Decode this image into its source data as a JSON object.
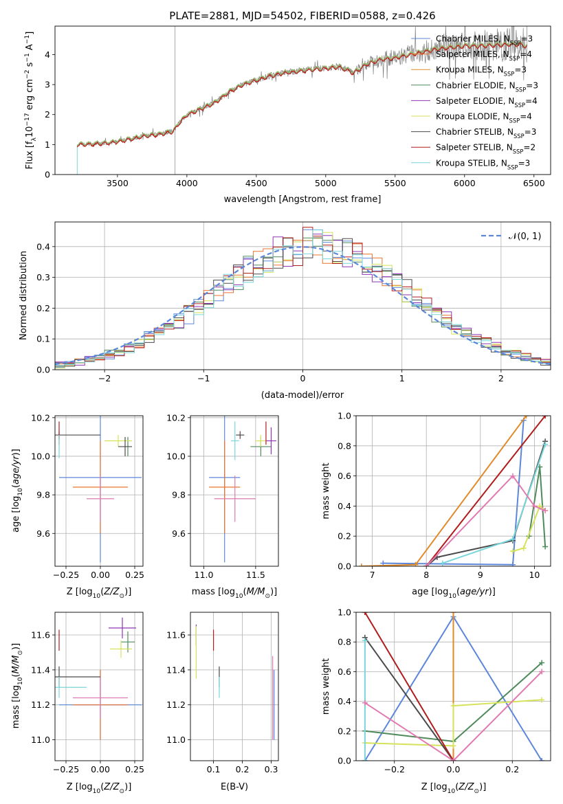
{
  "figure": {
    "title": "PLATE=2881, MJD=54502, FIBERID=0588, z=0.426"
  },
  "colors": {
    "chabrier_miles": "#5b86d9",
    "salpeter_miles": "#e8752e",
    "kroupa_miles": "#e08a2a",
    "chabrier_elodie": "#4f8a5b",
    "salpeter_elodie": "#8e35b5",
    "kroupa_elodie": "#d6e25a",
    "chabrier_stelib": "#4a4a4a",
    "salpeter_stelib": "#b01c1c",
    "kroupa_stelib": "#79d6da",
    "pink": "#e07ab0",
    "spectrum": "#808080",
    "grid": "#b0b0b0"
  },
  "chart_data": [
    {
      "id": "spectrum",
      "type": "line",
      "title": "PLATE=2881, MJD=54502, FIBERID=0588, z=0.426",
      "xlabel": "wavelength [Angstrom, rest frame]",
      "ylabel": "Flux [f_λ 10^-17 erg cm^-2 s^-1 A^-1]",
      "xlim": [
        3050,
        6620
      ],
      "ylim": [
        0,
        4.95
      ],
      "xticks": [
        3500,
        4000,
        4500,
        5000,
        5500,
        6000,
        6500
      ],
      "yticks": [
        0,
        1,
        2,
        3,
        4
      ],
      "grid": false,
      "legend_position": "top-right",
      "legend": [
        {
          "name": "Chabrier MILES, N_SSP=3",
          "color": "#5b86d9"
        },
        {
          "name": "Salpeter MILES, N_SSP=4",
          "color": "#e8752e"
        },
        {
          "name": "Kroupa MILES, N_SSP=3",
          "color": "#e08a2a"
        },
        {
          "name": "Chabrier ELODIE, N_SSP=3",
          "color": "#4f8a5b"
        },
        {
          "name": "Salpeter ELODIE, N_SSP=4",
          "color": "#8e35b5"
        },
        {
          "name": "Kroupa ELODIE, N_SSP=4",
          "color": "#d6e25a"
        },
        {
          "name": "Chabrier STELIB, N_SSP=3",
          "color": "#4a4a4a"
        },
        {
          "name": "Salpeter STELIB, N_SSP=2",
          "color": "#b01c1c"
        },
        {
          "name": "Kroupa STELIB, N_SSP=3",
          "color": "#79d6da"
        }
      ],
      "continuum": {
        "x": [
          3210,
          3300,
          3400,
          3500,
          3550,
          3600,
          3700,
          3800,
          3900,
          3950,
          4000,
          4100,
          4200,
          4300,
          4400,
          4500,
          4600,
          4700,
          4800,
          4900,
          5000,
          5100,
          5200,
          5300,
          5400,
          5500,
          5600,
          5700,
          5800,
          5900,
          6000,
          6100,
          6200,
          6300,
          6400,
          6450
        ],
        "y": [
          1.0,
          1.02,
          1.05,
          1.1,
          1.15,
          1.2,
          1.3,
          1.35,
          1.45,
          1.75,
          2.0,
          2.2,
          2.4,
          2.75,
          3.0,
          3.15,
          3.3,
          3.4,
          3.45,
          3.5,
          3.55,
          3.6,
          3.4,
          3.7,
          3.85,
          3.9,
          4.0,
          4.1,
          4.2,
          4.25,
          4.3,
          4.3,
          4.32,
          4.35,
          4.35,
          4.3
        ]
      }
    },
    {
      "id": "residuals",
      "type": "line",
      "xlabel": "(data-model)/error",
      "ylabel": "Normed distribution",
      "xlim": [
        -2.5,
        2.5
      ],
      "ylim": [
        0,
        0.48
      ],
      "xticks": [
        -2,
        -1,
        0,
        1,
        2
      ],
      "yticks": [
        0.0,
        0.1,
        0.2,
        0.3,
        0.4
      ],
      "grid": true,
      "legend_position": "top-right",
      "normal_curve": {
        "name": "𝒩(0, 1)",
        "color": "#5b86d9",
        "mean": 0,
        "sigma": 1
      }
    },
    {
      "id": "age_vs_z",
      "type": "scatter",
      "xlabel": "Z [log10(Z/Z⊙)]",
      "ylabel": "age [log10(age/yr)]",
      "xlim": [
        -0.33,
        0.31
      ],
      "ylim": [
        9.43,
        10.21
      ],
      "xticks": [
        -0.25,
        0.0,
        0.25
      ],
      "yticks": [
        9.6,
        9.8,
        10.0,
        10.2
      ],
      "grid": true
    },
    {
      "id": "age_vs_mass",
      "type": "scatter",
      "xlabel": "mass [log10(M/M⊙)]",
      "xlim": [
        10.87,
        11.72
      ],
      "ylim": [
        9.43,
        10.21
      ],
      "xticks": [
        11.0,
        11.5
      ],
      "yticks": [
        9.6,
        9.8,
        10.0,
        10.2
      ],
      "grid": true
    },
    {
      "id": "weight_vs_age",
      "type": "line",
      "xlabel": "age [log10(age/yr)]",
      "ylabel": "mass weight",
      "xlim": [
        6.7,
        10.3
      ],
      "ylim": [
        0,
        1
      ],
      "xticks": [
        7,
        8,
        9,
        10
      ],
      "yticks": [
        0.0,
        0.2,
        0.4,
        0.6,
        0.8,
        1.0
      ],
      "grid": true,
      "series": [
        {
          "color": "#5b86d9",
          "x": [
            7.2,
            9.6,
            9.8
          ],
          "y": [
            0.02,
            0.01,
            0.97
          ]
        },
        {
          "color": "#e08a2a",
          "x": [
            6.8,
            7.8,
            9.85
          ],
          "y": [
            0.0,
            0.01,
            1.0
          ]
        },
        {
          "color": "#4f8a5b",
          "x": [
            9.9,
            10.1,
            10.2
          ],
          "y": [
            0.2,
            0.66,
            0.13
          ]
        },
        {
          "color": "#8e35b5",
          "x": [
            10.15
          ],
          "y": [
            0.38
          ]
        },
        {
          "color": "#d6e25a",
          "x": [
            9.6,
            9.8,
            10.1,
            10.2
          ],
          "y": [
            0.1,
            0.12,
            0.4,
            0.37
          ]
        },
        {
          "color": "#4a4a4a",
          "x": [
            8.0,
            8.2,
            9.6,
            10.2
          ],
          "y": [
            0.0,
            0.06,
            0.17,
            0.83
          ]
        },
        {
          "color": "#b01c1c",
          "x": [
            8.0,
            10.2
          ],
          "y": [
            0.0,
            1.0
          ]
        },
        {
          "color": "#79d6da",
          "x": [
            8.3,
            9.6,
            10.2
          ],
          "y": [
            0.02,
            0.18,
            0.81
          ]
        },
        {
          "color": "#e07ab0",
          "x": [
            8.0,
            9.6,
            10.0,
            10.2
          ],
          "y": [
            0.0,
            0.6,
            0.4,
            0.37
          ]
        }
      ]
    },
    {
      "id": "mass_vs_z",
      "type": "scatter",
      "xlabel": "Z [log10(Z/Z⊙)]",
      "ylabel": "mass [log10(M/M⊙)]",
      "xlim": [
        -0.33,
        0.31
      ],
      "ylim": [
        10.88,
        11.73
      ],
      "xticks": [
        -0.25,
        0.0,
        0.25
      ],
      "yticks": [
        11.0,
        11.2,
        11.4,
        11.6
      ],
      "grid": true
    },
    {
      "id": "mass_vs_ebv",
      "type": "scatter",
      "xlabel": "E(B-V)",
      "xlim": [
        0.02,
        0.325
      ],
      "ylim": [
        10.88,
        11.73
      ],
      "xticks": [
        0.1,
        0.2,
        0.3
      ],
      "yticks": [
        11.0,
        11.2,
        11.4,
        11.6
      ],
      "grid": true
    },
    {
      "id": "weight_vs_z",
      "type": "line",
      "xlabel": "Z [log10(Z/Z⊙)]",
      "ylabel": "mass weight",
      "xlim": [
        -0.33,
        0.33
      ],
      "ylim": [
        0,
        1
      ],
      "xticks": [
        -0.2,
        0.0,
        0.2
      ],
      "yticks": [
        0.0,
        0.2,
        0.4,
        0.6,
        0.8,
        1.0
      ],
      "grid": true,
      "series": [
        {
          "color": "#5b86d9",
          "x": [
            -0.3,
            0.0,
            0.3
          ],
          "y": [
            0.0,
            0.97,
            0.0
          ]
        },
        {
          "color": "#e08a2a",
          "x": [
            0.0,
            0.0
          ],
          "y": [
            1.0,
            0.0
          ]
        },
        {
          "color": "#4f8a5b",
          "x": [
            -0.3,
            0.0,
            0.3
          ],
          "y": [
            0.2,
            0.13,
            0.66
          ]
        },
        {
          "color": "#d6e25a",
          "x": [
            -0.3,
            0.0,
            0.0,
            0.3
          ],
          "y": [
            0.12,
            0.1,
            0.37,
            0.41
          ]
        },
        {
          "color": "#4a4a4a",
          "x": [
            -0.3,
            0.0
          ],
          "y": [
            0.83,
            0.0
          ]
        },
        {
          "color": "#b01c1c",
          "x": [
            -0.3,
            0.0
          ],
          "y": [
            1.0,
            0.0
          ]
        },
        {
          "color": "#79d6da",
          "x": [
            -0.3,
            -0.3
          ],
          "y": [
            0.0,
            0.81
          ]
        },
        {
          "color": "#e07ab0",
          "x": [
            -0.3,
            0.0,
            0.3
          ],
          "y": [
            0.39,
            0.0,
            0.6
          ]
        }
      ]
    }
  ]
}
